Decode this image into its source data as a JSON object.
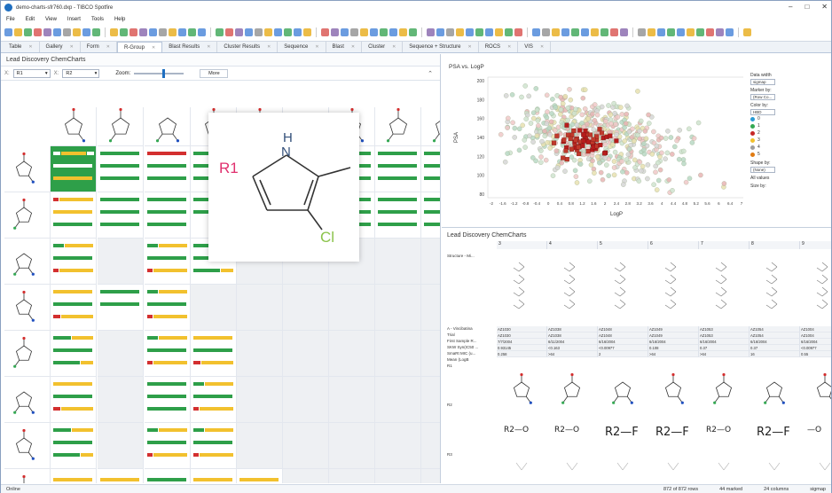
{
  "window": {
    "title": "demo-charts-sfr760.dxp - TIBCO Spotfire"
  },
  "menu": [
    "File",
    "Edit",
    "View",
    "Insert",
    "Tools",
    "Help"
  ],
  "tabs": [
    {
      "label": "Table",
      "active": false
    },
    {
      "label": "Gallery",
      "active": false
    },
    {
      "label": "Form",
      "active": false
    },
    {
      "label": "R-Group",
      "active": true
    },
    {
      "label": "Blast Results",
      "active": false
    },
    {
      "label": "Cluster Results",
      "active": false
    },
    {
      "label": "Sequence",
      "active": false
    },
    {
      "label": "Blast",
      "active": false
    },
    {
      "label": "Cluster",
      "active": false
    },
    {
      "label": "Sequence + Structure",
      "active": false
    },
    {
      "label": "ROCS",
      "active": false
    },
    {
      "label": "VIS",
      "active": false
    }
  ],
  "left_panel": {
    "title": "Lead Discovery ChemCharts",
    "x_axis_label": "X:",
    "x_axis_value": "R1",
    "y_axis_label": "X:",
    "y_axis_value": "R2",
    "zoom_label": "Zoom:",
    "zoom_level": 0.55,
    "more_label": "More"
  },
  "zoom_popup": {
    "r1_label": "R1",
    "nh_label": "H\nN",
    "cl_label": "Cl"
  },
  "scatter": {
    "title": "PSA vs. LogP",
    "x_axis_label": "LogP",
    "y_axis_label": "PSA",
    "x_ticks": [
      "-2",
      "-1.6",
      "-1.2",
      "-0.8",
      "-0.4",
      "0",
      "0.4",
      "0.8",
      "1.2",
      "1.6",
      "2",
      "2.4",
      "2.8",
      "3.2",
      "3.6",
      "4",
      "4.4",
      "4.8",
      "5.2",
      "5.6",
      "6",
      "6.4",
      "7"
    ],
    "y_ticks": [
      "200",
      "180",
      "160",
      "140",
      "120",
      "100",
      "80"
    ]
  },
  "legend": {
    "date_width_label": "Data width",
    "date_width_value": "sigmap",
    "marker_by_label": "Marker by:",
    "marker_by_value": "(Row Co...",
    "color_by_label": "Color by:",
    "color_by_value": "HBD",
    "items": [
      {
        "label": "0",
        "color": "#2a9bd4"
      },
      {
        "label": "1",
        "color": "#34a853"
      },
      {
        "label": "2",
        "color": "#c62828"
      },
      {
        "label": "3",
        "color": "#f2c12e"
      },
      {
        "label": "4",
        "color": "#9e9e9e"
      },
      {
        "label": "5",
        "color": "#e07b12"
      }
    ],
    "shape_by_label": "Shape by:",
    "shape_by_value": "(None)",
    "all_values_label": "All values",
    "size_by_label": "Size by:"
  },
  "bottom_table": {
    "title": "Lead Discovery ChemCharts",
    "col_numbers": [
      "3",
      "4",
      "5",
      "6",
      "7",
      "8",
      "9"
    ],
    "row_labels": [
      "Structure - Mi...",
      "A - Vincibatina",
      "Trial",
      "First Sample R...",
      "SKW Syn(IC50 ...",
      "SmaRt MIC (u...",
      "Mean (LogB",
      "R1",
      "R2",
      "R3"
    ],
    "rows": [
      [
        "AZ1030",
        "AZ1038",
        "AZ1048",
        "AZ1049",
        "AZ1053",
        "AZ1054",
        "AZ1004"
      ],
      [
        "AZ1030",
        "AZ1038",
        "AZ1048",
        "AZ1049",
        "AZ1053",
        "AZ1054",
        "AZ1004"
      ],
      [
        "7/7/2004",
        "6/11/2004",
        "6/16/2004",
        "6/16/2004",
        "6/16/2004",
        "6/16/2004",
        "6/16/2004"
      ],
      [
        "0.93145",
        "<0.163",
        "<0.00977",
        "0.108",
        "0.37",
        "0.37",
        "<0.00977"
      ],
      [
        "0.258",
        ">64",
        "2",
        ">64",
        ">64",
        "16",
        "0.55"
      ]
    ],
    "r2_labels": [
      "R2—O",
      "R2—O",
      "R2—F",
      "R2—F",
      "R2—O",
      "R2—F",
      "—O"
    ]
  },
  "status": {
    "left": "Online",
    "rows": "872 of 872 rows",
    "marked": "44 marked",
    "columns": "24 columns",
    "extra": "sigmap"
  }
}
